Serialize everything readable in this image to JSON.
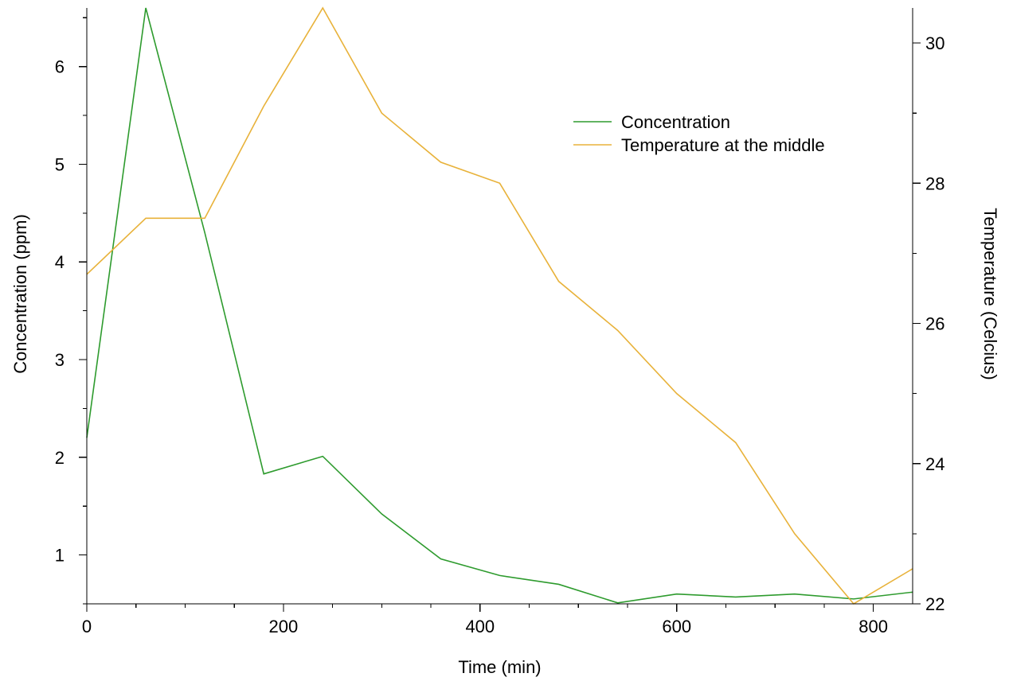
{
  "chart_data": {
    "type": "line",
    "title": "",
    "xlabel": "Time (min)",
    "ylabel": "Concentration (ppm)",
    "y2label": "Temperature (Celcius)",
    "xlim": [
      0,
      840
    ],
    "ylim": [
      0.5,
      6.6
    ],
    "y2lim": [
      22,
      30.5
    ],
    "xticks": [
      0,
      200,
      400,
      600,
      800
    ],
    "yticks": [
      1,
      2,
      3,
      4,
      5,
      6
    ],
    "y2ticks": [
      22,
      24,
      26,
      28,
      30
    ],
    "grid": false,
    "legend_position": "top-right",
    "series": [
      {
        "name": "Concentration",
        "axis": "left",
        "color": "#2e9b2e",
        "x": [
          0,
          60,
          120,
          180,
          240,
          300,
          360,
          420,
          480,
          540,
          600,
          660,
          720,
          780,
          840
        ],
        "y": [
          2.2,
          6.6,
          4.3,
          1.83,
          2.01,
          1.42,
          0.96,
          0.79,
          0.7,
          0.51,
          0.6,
          0.57,
          0.6,
          0.55,
          0.62
        ]
      },
      {
        "name": "Temperature at the middle",
        "axis": "right",
        "color": "#e8b23a",
        "x": [
          0,
          60,
          120,
          180,
          240,
          300,
          360,
          420,
          480,
          540,
          600,
          660,
          720,
          780,
          840
        ],
        "y": [
          26.7,
          27.5,
          27.5,
          29.1,
          30.5,
          29.0,
          28.3,
          28.0,
          26.6,
          25.9,
          25.0,
          24.3,
          23.0,
          22.0,
          22.5
        ]
      }
    ]
  }
}
